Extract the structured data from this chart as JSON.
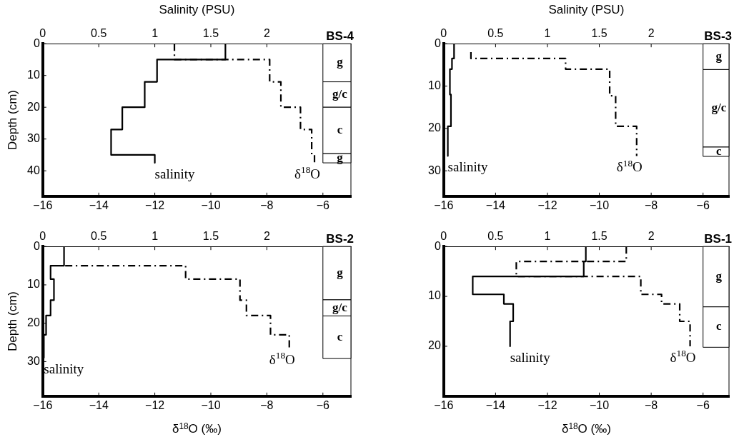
{
  "chart_data": [
    {
      "type": "line",
      "title": "BS-4",
      "x2label": "Salinity (PSU)",
      "ylabel": "Depth (cm)",
      "xlim": [
        -16,
        -5
      ],
      "xticks": [
        -16,
        -14,
        -12,
        -10,
        -8,
        -6
      ],
      "x2lim": [
        0,
        2.75
      ],
      "x2ticks": [
        0,
        0.5,
        1,
        1.5,
        2
      ],
      "ylim": [
        48,
        0
      ],
      "yticks": [
        0,
        10,
        20,
        30,
        40
      ],
      "legend": false,
      "series": [
        {
          "name": "salinity",
          "color": "#000000",
          "line_style": "solid",
          "axis": "x2",
          "x": [
            1.63,
            1.63,
            1.02,
            1.02,
            0.91,
            0.91,
            0.71,
            0.71,
            0.61,
            0.61,
            1.0,
            1.0
          ],
          "values": [
            0,
            5,
            5,
            12,
            12,
            20,
            20,
            27,
            27,
            35,
            35,
            37.5
          ]
        },
        {
          "name": "δ$^{18}$O",
          "color": "#000000",
          "line_style": "dashdot",
          "x": [
            -11.3,
            -11.3,
            -7.9,
            -7.9,
            -7.5,
            -7.5,
            -6.8,
            -6.8,
            -6.4,
            -6.4,
            -6.3,
            -6.3
          ],
          "values": [
            0,
            5,
            5,
            12,
            12,
            20,
            20,
            27,
            27,
            35,
            35,
            37.5
          ]
        }
      ],
      "bands": [
        {
          "axis": "y",
          "from": 0,
          "to": 12,
          "label": "g"
        },
        {
          "axis": "y",
          "from": 12,
          "to": 20,
          "label": "g/c"
        },
        {
          "axis": "y",
          "from": 20,
          "to": 34.6,
          "label": "c"
        },
        {
          "axis": "y",
          "from": 34.6,
          "to": 37.5,
          "label": "g"
        }
      ]
    },
    {
      "type": "line",
      "title": "BS-3",
      "x2label": "Salinity (PSU)",
      "xlim": [
        -16,
        -5
      ],
      "xticks": [
        -16,
        -14,
        -12,
        -10,
        -8,
        -6
      ],
      "x2lim": [
        0,
        2.75
      ],
      "x2ticks": [
        0,
        0.5,
        1,
        1.5,
        2
      ],
      "ylim": [
        36,
        0
      ],
      "yticks": [
        0,
        10,
        20,
        30
      ],
      "legend": false,
      "series": [
        {
          "name": "salinity",
          "color": "#000000",
          "line_style": "solid",
          "axis": "x2",
          "x": [
            0.1,
            0.1,
            0.08,
            0.08,
            0.06,
            0.06,
            0.07,
            0.07,
            0.04,
            0.04
          ],
          "values": [
            0,
            3.5,
            3.5,
            6,
            6,
            12,
            12,
            19.5,
            19.5,
            26.5
          ]
        },
        {
          "name": "δ$^{18}$O",
          "color": "#000000",
          "line_style": "dashdot",
          "x": [
            -14.95,
            -14.95,
            -11.3,
            -11.3,
            -9.6,
            -9.6,
            -9.37,
            -9.37,
            -8.56,
            -8.56
          ],
          "values": [
            2,
            3.5,
            3.5,
            6,
            6,
            12.3,
            12.3,
            19.5,
            19.5,
            26.5
          ]
        }
      ],
      "bands": [
        {
          "axis": "y",
          "from": 0,
          "to": 6.1,
          "label": "g"
        },
        {
          "axis": "y",
          "from": 6.1,
          "to": 24.4,
          "label": "g/c"
        },
        {
          "axis": "y",
          "from": 24.4,
          "to": 26.6,
          "label": "c"
        }
      ]
    },
    {
      "type": "line",
      "title": "BS-2",
      "xlabel": "δ$^{18}$O (‰)",
      "ylabel": "Depth (cm)",
      "xlim": [
        -16,
        -5
      ],
      "xticks": [
        -16,
        -14,
        -12,
        -10,
        -8,
        -6
      ],
      "x2lim": [
        0,
        2.75
      ],
      "x2ticks": [
        0,
        0.5,
        1,
        1.5,
        2
      ],
      "ylim": [
        39,
        0
      ],
      "yticks": [
        0,
        10,
        20,
        30
      ],
      "legend": false,
      "series": [
        {
          "name": "salinity",
          "color": "#000000",
          "line_style": "solid",
          "axis": "x2",
          "x": [
            0.19,
            0.19,
            0.07,
            0.07,
            0.1,
            0.1,
            0.07,
            0.07,
            0.03,
            0.03,
            0.01,
            0.01
          ],
          "values": [
            0,
            5,
            5,
            8.5,
            8.5,
            14,
            14,
            18,
            18,
            23,
            23,
            29
          ]
        },
        {
          "name": "δ$^{18}$O",
          "color": "#000000",
          "line_style": "dashdot",
          "x": [
            -15.2,
            -10.9,
            -10.9,
            -8.96,
            -8.96,
            -8.73,
            -8.73,
            -7.87,
            -7.87,
            -7.2,
            -7.2
          ],
          "values": [
            5,
            5,
            8.5,
            8.5,
            14,
            14,
            18,
            18,
            23,
            23,
            26.5
          ]
        }
      ],
      "bands": [
        {
          "axis": "y",
          "from": 0,
          "to": 13.9,
          "label": "g"
        },
        {
          "axis": "y",
          "from": 13.9,
          "to": 18.1,
          "label": "g/c"
        },
        {
          "axis": "y",
          "from": 18.1,
          "to": 29.2,
          "label": "c"
        }
      ]
    },
    {
      "type": "line",
      "title": "BS-1",
      "xlabel": "δ$^{18}$O (‰)",
      "xlim": [
        -16,
        -5
      ],
      "xticks": [
        -16,
        -14,
        -12,
        -10,
        -8,
        -6
      ],
      "x2lim": [
        0,
        2.75
      ],
      "x2ticks": [
        0,
        0.5,
        1,
        1.5,
        2
      ],
      "ylim": [
        30,
        0
      ],
      "yticks": [
        0,
        10,
        20
      ],
      "legend": false,
      "series": [
        {
          "name": "salinity",
          "color": "#000000",
          "line_style": "solid",
          "axis": "x2",
          "x": [
            1.37,
            1.37,
            1.35,
            1.35,
            0.28,
            0.28,
            0.58,
            0.58,
            0.67,
            0.67,
            0.64,
            0.64
          ],
          "values": [
            0,
            3,
            3,
            6,
            6,
            9.6,
            9.6,
            11.5,
            11.5,
            15,
            15,
            20
          ]
        },
        {
          "name": "δ$^{18}$O",
          "color": "#000000",
          "line_style": "dashdot",
          "x": [
            -8.96,
            -8.96,
            -13.2,
            -13.2,
            -8.4,
            -8.4,
            -7.6,
            -7.6,
            -6.9,
            -6.9,
            -6.5,
            -6.5
          ],
          "values": [
            0,
            3,
            3,
            6,
            6,
            9.6,
            9.6,
            11.5,
            11.5,
            15,
            15,
            20
          ]
        }
      ],
      "bands": [
        {
          "axis": "y",
          "from": 0,
          "to": 12.1,
          "label": "g"
        },
        {
          "axis": "y",
          "from": 12.1,
          "to": 20.2,
          "label": "c"
        }
      ]
    }
  ]
}
